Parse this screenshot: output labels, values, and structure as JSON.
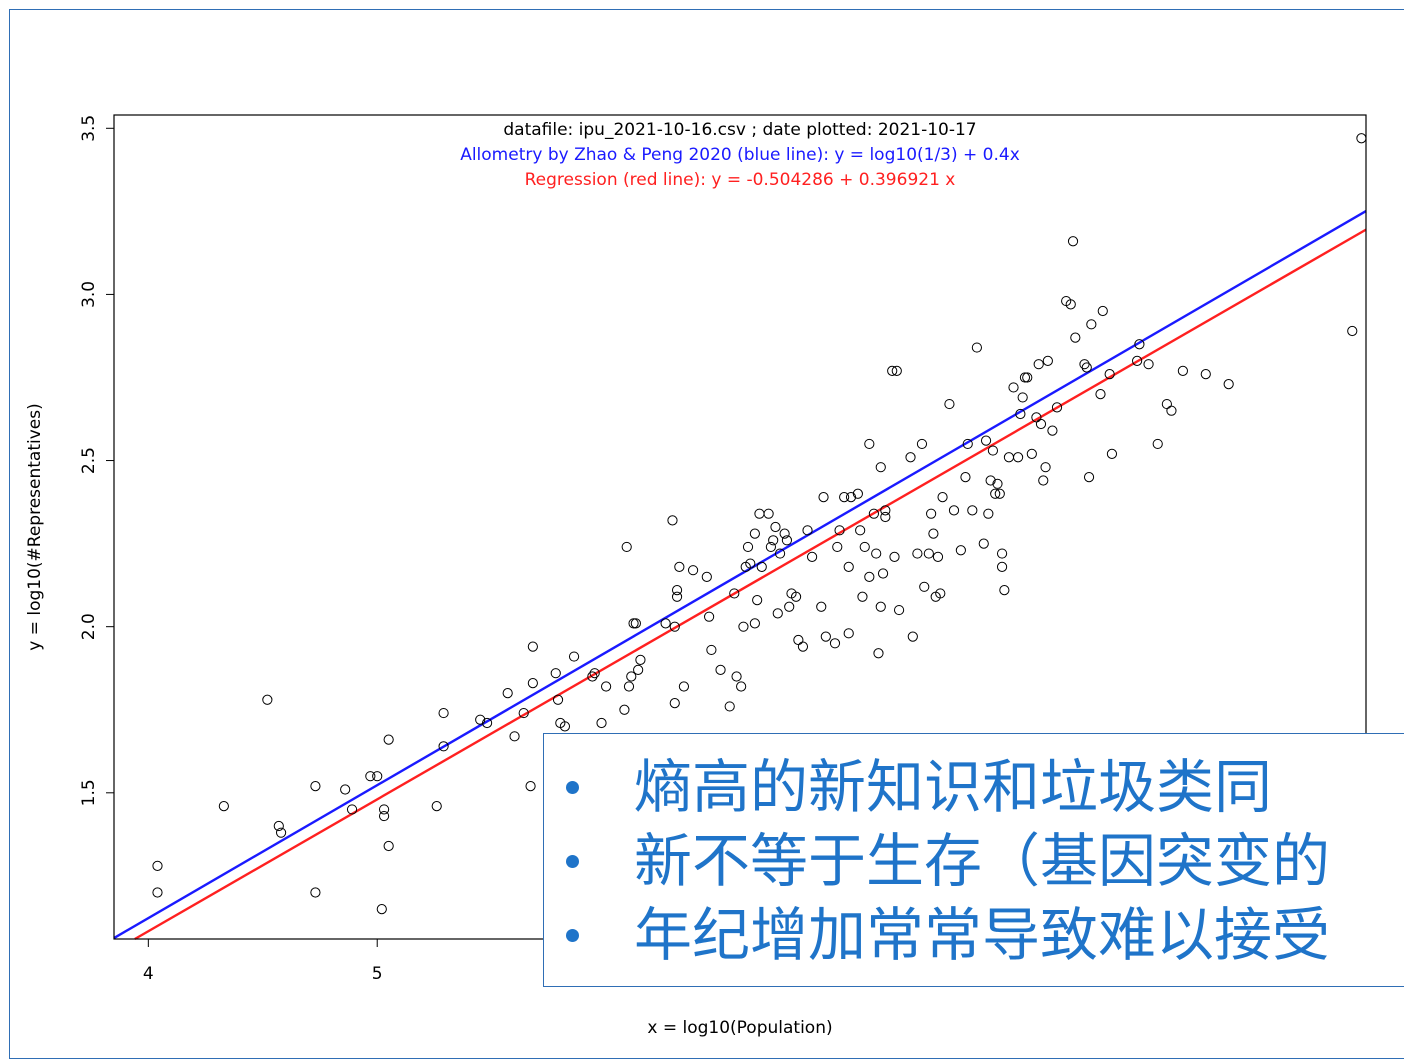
{
  "chart_data": {
    "type": "scatter",
    "header_lines": [
      {
        "text": "datafile:  ipu_2021-10-16.csv ; date plotted:  2021-10-17",
        "color": "#000000"
      },
      {
        "text": "Allometry by Zhao & Peng 2020 (blue line):  y = log10(1/3) + 0.4x",
        "color": "#1a1aff"
      },
      {
        "text": "Regression (red line):  y =  -0.504286  +  0.396921 x",
        "color": "#ff2020"
      }
    ],
    "xlabel": "x = log10(Population)",
    "ylabel": "y = log10(#Representatives)",
    "xlim": [
      3.85,
      9.32
    ],
    "ylim": [
      1.06,
      3.54
    ],
    "x_ticks": [
      4,
      5
    ],
    "y_ticks": [
      1.5,
      2.0,
      2.5,
      3.0,
      3.5
    ],
    "y_tick_labels": [
      "1.5",
      "2.0",
      "2.5",
      "3.0",
      "3.5"
    ],
    "lines": [
      {
        "intercept": -0.4771,
        "slope": 0.4,
        "color": "#1a1aff"
      },
      {
        "intercept": -0.504286,
        "slope": 0.396921,
        "color": "#ff2020"
      }
    ],
    "points": [
      [
        4.04,
        1.28
      ],
      [
        4.04,
        1.2
      ],
      [
        4.33,
        1.46
      ],
      [
        4.52,
        1.78
      ],
      [
        4.57,
        1.4
      ],
      [
        4.58,
        1.38
      ],
      [
        4.73,
        1.52
      ],
      [
        4.73,
        1.2
      ],
      [
        4.86,
        1.51
      ],
      [
        4.89,
        1.45
      ],
      [
        4.97,
        1.55
      ],
      [
        5.0,
        1.55
      ],
      [
        5.02,
        1.15
      ],
      [
        5.03,
        1.43
      ],
      [
        5.03,
        1.45
      ],
      [
        5.05,
        1.34
      ],
      [
        5.05,
        1.66
      ],
      [
        5.26,
        1.46
      ],
      [
        5.29,
        1.64
      ],
      [
        5.29,
        1.74
      ],
      [
        5.45,
        1.72
      ],
      [
        5.48,
        1.71
      ],
      [
        5.57,
        1.8
      ],
      [
        5.6,
        1.67
      ],
      [
        5.64,
        1.74
      ],
      [
        5.67,
        1.52
      ],
      [
        5.68,
        1.94
      ],
      [
        5.68,
        1.83
      ],
      [
        5.78,
        1.86
      ],
      [
        5.79,
        1.78
      ],
      [
        5.8,
        1.71
      ],
      [
        5.82,
        1.7
      ],
      [
        5.86,
        1.91
      ],
      [
        5.94,
        1.85
      ],
      [
        5.95,
        1.86
      ],
      [
        5.98,
        1.71
      ],
      [
        6.0,
        1.82
      ],
      [
        6.08,
        1.75
      ],
      [
        6.09,
        2.24
      ],
      [
        6.1,
        1.82
      ],
      [
        6.11,
        1.85
      ],
      [
        6.12,
        2.01
      ],
      [
        6.13,
        2.01
      ],
      [
        6.14,
        1.87
      ],
      [
        6.15,
        1.9
      ],
      [
        6.26,
        2.01
      ],
      [
        6.29,
        2.32
      ],
      [
        6.3,
        2.0
      ],
      [
        6.3,
        1.77
      ],
      [
        6.31,
        2.09
      ],
      [
        6.31,
        2.11
      ],
      [
        6.32,
        2.18
      ],
      [
        6.34,
        1.82
      ],
      [
        6.38,
        2.17
      ],
      [
        6.44,
        2.15
      ],
      [
        6.45,
        2.03
      ],
      [
        6.46,
        1.93
      ],
      [
        6.5,
        1.87
      ],
      [
        6.54,
        1.76
      ],
      [
        6.56,
        2.1
      ],
      [
        6.57,
        1.85
      ],
      [
        6.59,
        1.82
      ],
      [
        6.6,
        2.0
      ],
      [
        6.61,
        2.18
      ],
      [
        6.62,
        2.24
      ],
      [
        6.63,
        2.19
      ],
      [
        6.65,
        2.01
      ],
      [
        6.65,
        2.28
      ],
      [
        6.66,
        2.08
      ],
      [
        6.67,
        2.34
      ],
      [
        6.68,
        2.18
      ],
      [
        6.71,
        2.34
      ],
      [
        6.72,
        2.24
      ],
      [
        6.73,
        2.26
      ],
      [
        6.74,
        2.3
      ],
      [
        6.75,
        2.04
      ],
      [
        6.76,
        2.22
      ],
      [
        6.78,
        2.28
      ],
      [
        6.79,
        2.26
      ],
      [
        6.8,
        2.06
      ],
      [
        6.81,
        2.1
      ],
      [
        6.83,
        2.09
      ],
      [
        6.84,
        1.96
      ],
      [
        6.86,
        1.94
      ],
      [
        6.88,
        2.29
      ],
      [
        6.9,
        2.21
      ],
      [
        6.94,
        2.06
      ],
      [
        6.95,
        2.39
      ],
      [
        6.96,
        1.97
      ],
      [
        7.0,
        1.95
      ],
      [
        7.01,
        2.24
      ],
      [
        7.02,
        2.29
      ],
      [
        7.04,
        2.39
      ],
      [
        7.06,
        2.18
      ],
      [
        7.06,
        1.98
      ],
      [
        7.07,
        2.39
      ],
      [
        7.1,
        2.4
      ],
      [
        7.11,
        2.29
      ],
      [
        7.12,
        2.09
      ],
      [
        7.13,
        2.24
      ],
      [
        7.15,
        2.15
      ],
      [
        7.15,
        2.55
      ],
      [
        7.17,
        2.34
      ],
      [
        7.18,
        2.22
      ],
      [
        7.19,
        1.92
      ],
      [
        7.2,
        2.06
      ],
      [
        7.2,
        2.48
      ],
      [
        7.21,
        2.16
      ],
      [
        7.22,
        2.35
      ],
      [
        7.22,
        2.33
      ],
      [
        7.25,
        2.77
      ],
      [
        7.26,
        2.21
      ],
      [
        7.27,
        2.77
      ],
      [
        7.28,
        2.05
      ],
      [
        7.33,
        2.51
      ],
      [
        7.34,
        1.97
      ],
      [
        7.36,
        2.22
      ],
      [
        7.38,
        2.55
      ],
      [
        7.39,
        2.12
      ],
      [
        7.41,
        2.22
      ],
      [
        7.42,
        2.34
      ],
      [
        7.43,
        2.28
      ],
      [
        7.44,
        2.09
      ],
      [
        7.45,
        2.21
      ],
      [
        7.46,
        2.1
      ],
      [
        7.47,
        2.39
      ],
      [
        7.5,
        2.67
      ],
      [
        7.52,
        2.35
      ],
      [
        7.55,
        2.23
      ],
      [
        7.57,
        2.45
      ],
      [
        7.58,
        2.55
      ],
      [
        7.6,
        2.35
      ],
      [
        7.62,
        2.84
      ],
      [
        7.65,
        2.25
      ],
      [
        7.66,
        2.56
      ],
      [
        7.67,
        2.34
      ],
      [
        7.68,
        2.44
      ],
      [
        7.69,
        2.53
      ],
      [
        7.7,
        2.4
      ],
      [
        7.71,
        2.43
      ],
      [
        7.72,
        2.4
      ],
      [
        7.73,
        2.22
      ],
      [
        7.73,
        2.18
      ],
      [
        7.74,
        2.11
      ],
      [
        7.76,
        2.51
      ],
      [
        7.78,
        2.72
      ],
      [
        7.8,
        2.51
      ],
      [
        7.81,
        2.64
      ],
      [
        7.82,
        2.69
      ],
      [
        7.83,
        2.75
      ],
      [
        7.84,
        2.75
      ],
      [
        7.86,
        2.52
      ],
      [
        7.88,
        2.63
      ],
      [
        7.89,
        2.79
      ],
      [
        7.9,
        2.61
      ],
      [
        7.91,
        2.44
      ],
      [
        7.92,
        2.48
      ],
      [
        7.93,
        2.8
      ],
      [
        7.95,
        2.59
      ],
      [
        7.97,
        2.66
      ],
      [
        8.01,
        2.98
      ],
      [
        8.03,
        2.97
      ],
      [
        8.04,
        3.16
      ],
      [
        8.05,
        2.87
      ],
      [
        8.09,
        2.79
      ],
      [
        8.1,
        2.78
      ],
      [
        8.11,
        2.45
      ],
      [
        8.12,
        2.91
      ],
      [
        8.16,
        2.7
      ],
      [
        8.17,
        2.95
      ],
      [
        8.2,
        2.76
      ],
      [
        8.21,
        2.52
      ],
      [
        8.32,
        2.8
      ],
      [
        8.33,
        2.85
      ],
      [
        8.37,
        2.79
      ],
      [
        8.41,
        2.55
      ],
      [
        8.45,
        2.67
      ],
      [
        8.47,
        2.65
      ],
      [
        8.52,
        2.77
      ],
      [
        8.62,
        2.76
      ],
      [
        8.72,
        2.73
      ],
      [
        9.26,
        2.89
      ],
      [
        9.3,
        3.47
      ]
    ]
  },
  "overlay": {
    "bullets": [
      "熵高的新知识和垃圾类同",
      "新不等于生存（基因突变的",
      "年纪增加常常导致难以接受"
    ],
    "text_color": "#1f74c9"
  }
}
